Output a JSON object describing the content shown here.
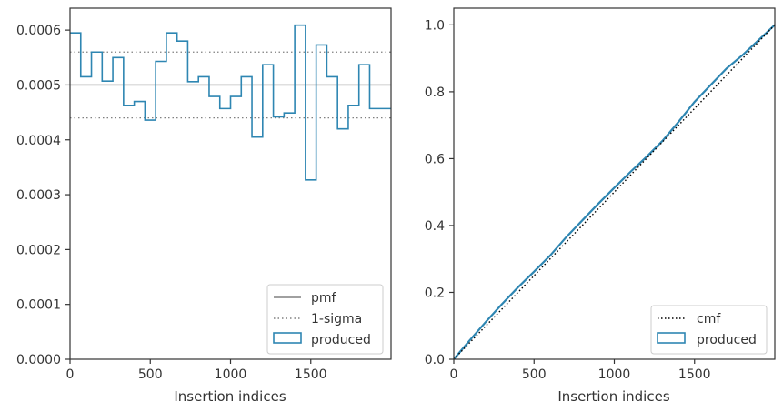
{
  "chart_data": [
    {
      "type": "histogram",
      "xlabel": "Insertion indices",
      "ylabel": "",
      "xlim": [
        0,
        2000
      ],
      "ylim": [
        0,
        0.00064
      ],
      "xticks": [
        0,
        500,
        1000,
        1500
      ],
      "xtick_labels": [
        "0",
        "500",
        "1000",
        "1500"
      ],
      "yticks": [
        0,
        0.0001,
        0.0002,
        0.0003,
        0.0004,
        0.0005,
        0.0006
      ],
      "ytick_labels": [
        "0.0000",
        "0.0001",
        "0.0002",
        "0.0003",
        "0.0004",
        "0.0005",
        "0.0006"
      ],
      "bin_width": 66.67,
      "bin_values": [
        0.000595,
        0.000515,
        0.00056,
        0.000507,
        0.00055,
        0.000463,
        0.00047,
        0.000436,
        0.000543,
        0.000595,
        0.00058,
        0.000506,
        0.000515,
        0.000479,
        0.000457,
        0.000479,
        0.000515,
        0.000405,
        0.000537,
        0.000442,
        0.000449,
        0.000609,
        0.000327,
        0.000573,
        0.000515,
        0.00042,
        0.000463,
        0.000537,
        0.000457,
        0.000457
      ],
      "reference_lines": [
        {
          "name": "pmf",
          "y": 0.0005,
          "style": "solid",
          "color": "#808080"
        },
        {
          "name": "1-sigma",
          "y": 0.00056,
          "style": "dotted",
          "color": "#808080"
        },
        {
          "name": "1-sigma",
          "y": 0.00044,
          "style": "dotted",
          "color": "#808080"
        }
      ],
      "series_color": "#2e86b2",
      "legend": {
        "placement": "lower-right",
        "entries": [
          {
            "label": "pmf",
            "kind": "solid-line"
          },
          {
            "label": "1-sigma",
            "kind": "dotted-line"
          },
          {
            "label": "produced",
            "kind": "patch"
          }
        ]
      }
    },
    {
      "type": "line",
      "xlabel": "Insertion indices",
      "ylabel": "",
      "xlim": [
        0,
        2000
      ],
      "ylim": [
        0,
        1.05
      ],
      "xticks": [
        0,
        500,
        1000,
        1500
      ],
      "xtick_labels": [
        "0",
        "500",
        "1000",
        "1500"
      ],
      "yticks": [
        0,
        0.2,
        0.4,
        0.6,
        0.8,
        1.0
      ],
      "ytick_labels": [
        "0.0",
        "0.2",
        "0.4",
        "0.6",
        "0.8",
        "1.0"
      ],
      "series": [
        {
          "name": "cmf",
          "style": "dotted",
          "color": "#000000",
          "x": [
            0,
            2000
          ],
          "y": [
            0,
            1.0
          ]
        },
        {
          "name": "produced",
          "style": "step",
          "color": "#2e86b2",
          "x": [
            0,
            100,
            200,
            300,
            400,
            500,
            600,
            700,
            800,
            900,
            1000,
            1100,
            1200,
            1300,
            1400,
            1500,
            1600,
            1700,
            1800,
            1900,
            2000
          ],
          "y": [
            0,
            0.057,
            0.112,
            0.165,
            0.215,
            0.262,
            0.31,
            0.365,
            0.415,
            0.465,
            0.513,
            0.56,
            0.605,
            0.653,
            0.71,
            0.77,
            0.82,
            0.87,
            0.91,
            0.955,
            1.0
          ]
        }
      ],
      "legend": {
        "placement": "lower-right",
        "entries": [
          {
            "label": "cmf",
            "kind": "dotted-line"
          },
          {
            "label": "produced",
            "kind": "patch"
          }
        ]
      }
    }
  ]
}
